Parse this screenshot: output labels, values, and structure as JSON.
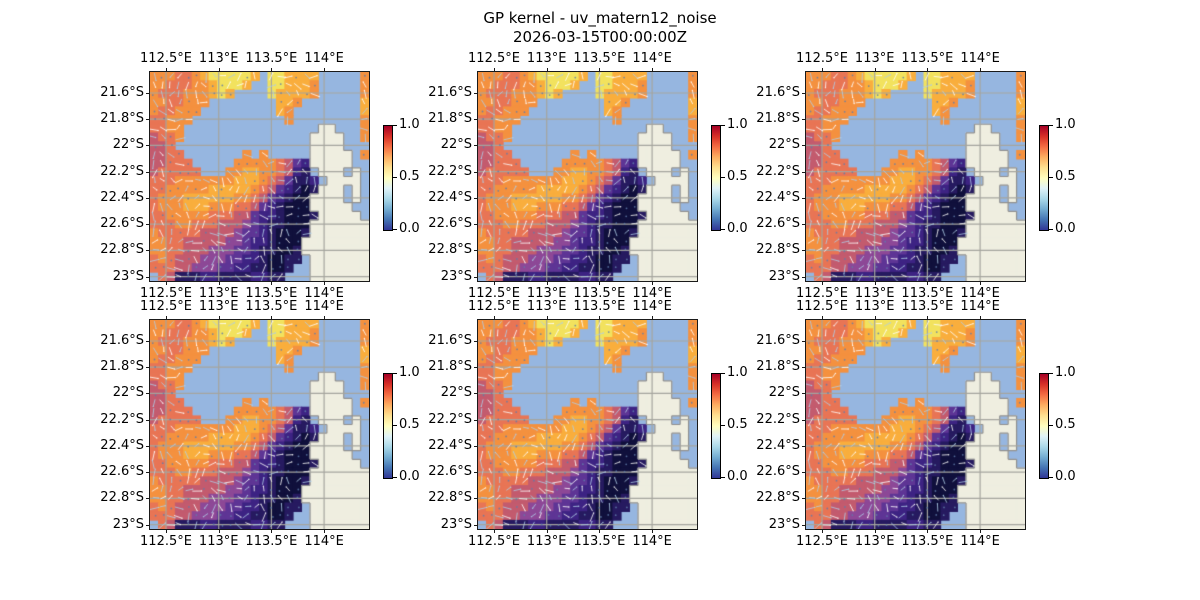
{
  "title": "GP kernel - uv_matern12_noise",
  "subtitle": "2026-03-15T00:00:00Z",
  "chart_data": {
    "type": "heatmap",
    "layout": {
      "rows": 2,
      "cols": 3,
      "panels": 6,
      "note": "six identical map panels, quiver arrows overlaid"
    },
    "x_tick_labels": [
      "112.5°E",
      "113°E",
      "113.5°E",
      "114°E"
    ],
    "y_tick_labels": [
      "21.6°S",
      "21.8°S",
      "22°S",
      "22.2°S",
      "22.4°S",
      "22.6°S",
      "22.8°S",
      "23°S"
    ],
    "x_ticks_also_on_top": true,
    "lon_range": [
      112.35,
      114.42
    ],
    "lat_range": [
      -23.02,
      -21.44
    ],
    "grid_on": true,
    "colorbar": {
      "ticks_top_to_bottom": [
        "1.0",
        "0.5",
        "0.0"
      ],
      "range": [
        0.0,
        1.0
      ],
      "gradient_top_to_bottom": [
        "#a50026",
        "#d73027",
        "#f46d43",
        "#fdae61",
        "#fee090",
        "#ffffbf",
        "#e0f3f8",
        "#abd9e9",
        "#74add1",
        "#4575b4",
        "#313695"
      ]
    },
    "field_colormap": {
      "0": "#10103c",
      "1": "#261a60",
      "2": "#3d2383",
      "3": "#5e3595",
      "4": "#8d4897",
      "5": "#c35b6e",
      "6": "#e87555",
      "7": "#f4913f",
      "8": "#f9ae3d",
      "9": "#f2e25e"
    },
    "cell_codes": {
      ".": "masked water",
      "L": "land",
      "0-9": "field value 0.0-1.0 in tenths"
    },
    "map_colors": {
      "water": "#96b6e0",
      "land": "#efeee0",
      "coastline": "#8f8f8f",
      "gridline": "#a5a59e",
      "arrow_white": "rgba(255,255,255,0.9)",
      "arrow_blue": "rgba(175,205,232,0.9)",
      "dot_blue": "rgba(95,125,170,0.85)"
    },
    "grid": [
      "7776678999998.998888.....7",
      "776667789998..998887.....7",
      "7666777898....988887.....7",
      "7766777........887.......8",
      "766777.........87........8",
      "66777...........7........7",
      "6677................LL...7",
      "5667...............LLLL..7",
      "556................LLLL...",
      "5566.......7.7.....LLLLL.7",
      "55666.....777776532LLLLL..",
      "566666...7788776521.LLL.L.",
      "66677777778887653112.LLLL.",
      "66777778888876532101LLL.L.",
      "6777888888776532100LLLL.L.",
      "6777888777665321000LLLLL..",
      "66777776665532210001LLLLL.",
      "6667766655543211000LLLLLLL",
      "7666665555433210001LLLLLLL",
      "776655555443221000LLLLLLLL",
      "776655544433211001LLLLLLLL",
      "676555444332210011.LLLLLLL",
      "66655444332211001..LLLLLLL",
      ".651112211112211...LLLLLLL"
    ]
  }
}
